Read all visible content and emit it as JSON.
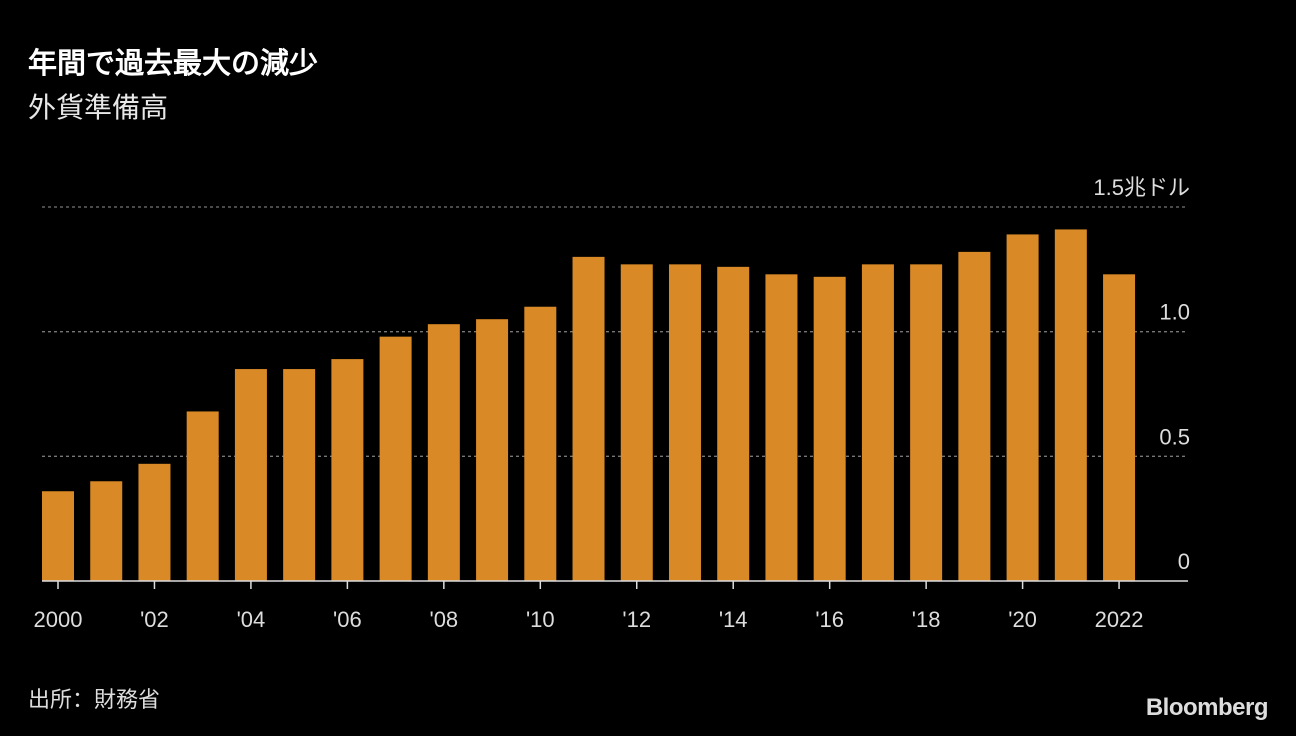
{
  "chart_data": {
    "type": "bar",
    "title": "年間で過去最大の減少",
    "subtitle": "外貨準備高",
    "xlabel": "",
    "ylabel": "",
    "unit_label": "1.5兆ドル",
    "categories": [
      "2000",
      "2001",
      "2002",
      "2003",
      "2004",
      "2005",
      "2006",
      "2007",
      "2008",
      "2009",
      "2010",
      "2011",
      "2012",
      "2013",
      "2014",
      "2015",
      "2016",
      "2017",
      "2018",
      "2019",
      "2020",
      "2021",
      "2022"
    ],
    "values": [
      0.36,
      0.4,
      0.47,
      0.68,
      0.85,
      0.85,
      0.89,
      0.98,
      1.03,
      1.05,
      1.1,
      1.3,
      1.27,
      1.27,
      1.26,
      1.23,
      1.22,
      1.27,
      1.27,
      1.32,
      1.39,
      1.41,
      1.23
    ],
    "x_tick_labels": [
      {
        "index": 0,
        "label": "2000"
      },
      {
        "index": 2,
        "label": "'02"
      },
      {
        "index": 4,
        "label": "'04"
      },
      {
        "index": 6,
        "label": "'06"
      },
      {
        "index": 8,
        "label": "'08"
      },
      {
        "index": 10,
        "label": "'10"
      },
      {
        "index": 12,
        "label": "'12"
      },
      {
        "index": 14,
        "label": "'14"
      },
      {
        "index": 16,
        "label": "'16"
      },
      {
        "index": 18,
        "label": "'18"
      },
      {
        "index": 20,
        "label": "'20"
      },
      {
        "index": 22,
        "label": "2022"
      }
    ],
    "y_ticks": [
      {
        "value": 0,
        "label": "0"
      },
      {
        "value": 0.5,
        "label": "0.5"
      },
      {
        "value": 1.0,
        "label": "1.0"
      },
      {
        "value": 1.5,
        "label": "1.5兆ドル"
      }
    ],
    "ylim": [
      0,
      1.5
    ],
    "grid": true,
    "color": "#d98a26"
  },
  "source": "出所：財務省",
  "brand": "Bloomberg"
}
